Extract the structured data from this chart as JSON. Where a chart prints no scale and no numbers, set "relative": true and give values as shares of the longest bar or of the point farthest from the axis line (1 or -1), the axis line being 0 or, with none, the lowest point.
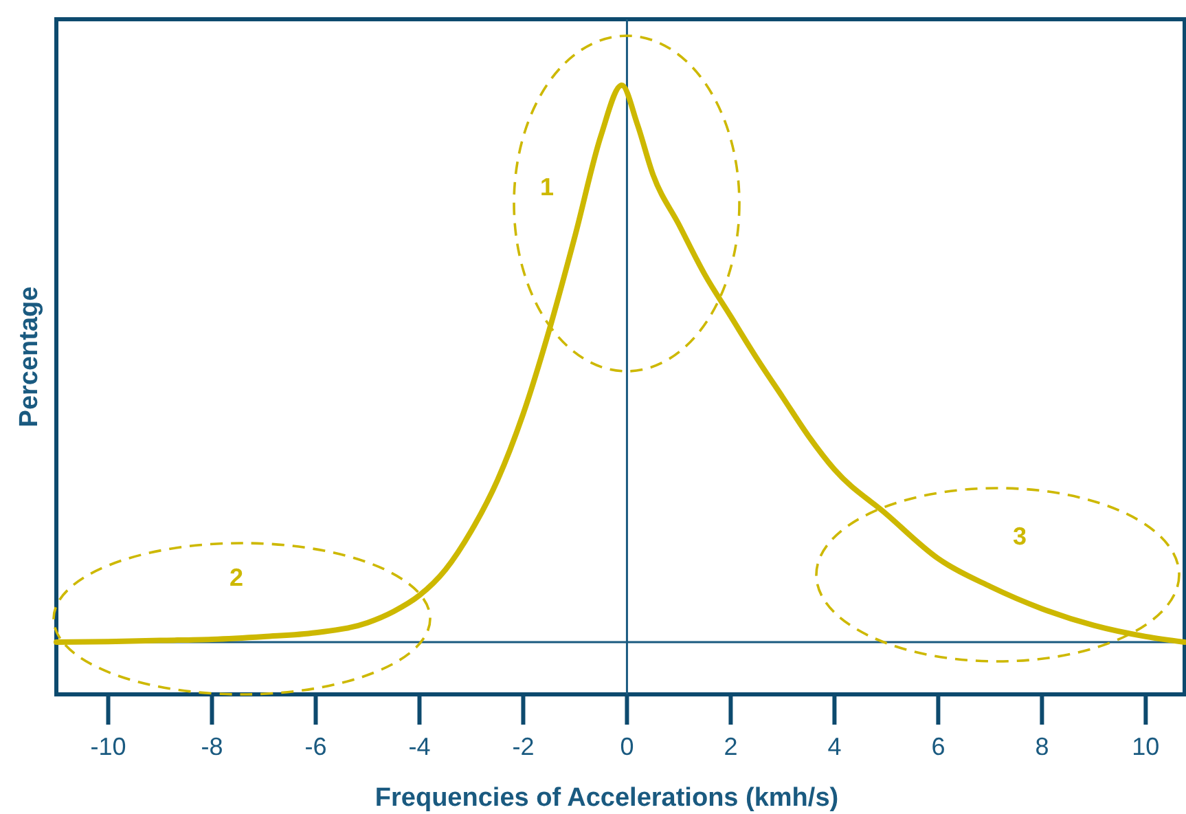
{
  "chart_data": {
    "type": "line",
    "relative": true,
    "xlabel": "Frequencies of Accelerations (kmh/s)",
    "ylabel": "Percentage",
    "xlim": [
      -11,
      10.75
    ],
    "xticks": [
      -10,
      -8,
      -6,
      -4,
      -2,
      0,
      2,
      4,
      6,
      8,
      10
    ],
    "tick_labels": "x",
    "grid": false,
    "series": [
      {
        "color": "#cdb800",
        "x": [
          -11,
          -10,
          -9,
          -8,
          -7,
          -6,
          -5,
          -4.5,
          -4,
          -3.5,
          -3,
          -2.5,
          -2,
          -1.5,
          -1,
          -0.5,
          -0.1,
          0.2,
          0.5,
          1,
          1.5,
          2,
          2.5,
          3,
          3.5,
          4,
          5,
          6,
          7,
          8,
          9,
          10,
          10.75
        ],
        "values": [
          0,
          0.001,
          0.003,
          0.005,
          0.01,
          0.017,
          0.035,
          0.055,
          0.084,
          0.13,
          0.2,
          0.29,
          0.41,
          0.56,
          0.73,
          0.91,
          1,
          0.93,
          0.84,
          0.75,
          0.66,
          0.585,
          0.51,
          0.44,
          0.37,
          0.31,
          0.23,
          0.15,
          0.1,
          0.06,
          0.03,
          0.01,
          0
        ]
      }
    ],
    "ref_lines": [
      {
        "axis": "x",
        "value": 0,
        "color": "#1a5a80"
      }
    ],
    "annotations": [
      "1",
      "2",
      "3"
    ]
  }
}
